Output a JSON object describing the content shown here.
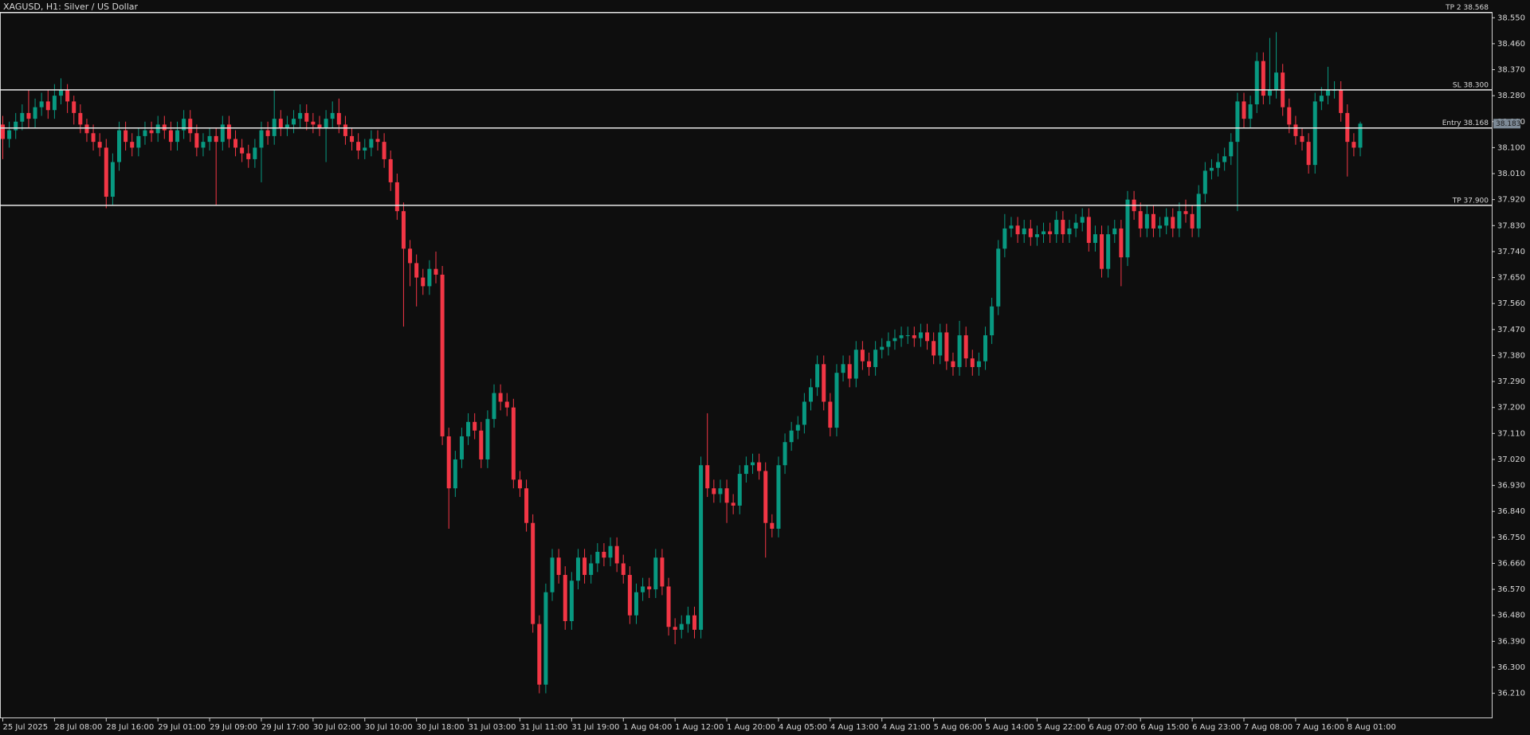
{
  "chart_data": {
    "type": "candlestick",
    "title": "XAGUSD, H1:  Silver / US Dollar",
    "bull_color": "#089981",
    "bear_color": "#f23645",
    "ylim": [
      36.14,
      38.57
    ],
    "yticks": [
      {
        "value": 38.55,
        "label": "38.550"
      },
      {
        "value": 38.46,
        "label": "38.460"
      },
      {
        "value": 38.37,
        "label": "38.370"
      },
      {
        "value": 38.28,
        "label": "38.280"
      },
      {
        "value": 38.19,
        "label": "38.190"
      },
      {
        "value": 38.1,
        "label": "38.100"
      },
      {
        "value": 38.01,
        "label": "38.010"
      },
      {
        "value": 37.92,
        "label": "37.920"
      },
      {
        "value": 37.83,
        "label": "37.830"
      },
      {
        "value": 37.74,
        "label": "37.740"
      },
      {
        "value": 37.65,
        "label": "37.650"
      },
      {
        "value": 37.56,
        "label": "37.560"
      },
      {
        "value": 37.47,
        "label": "37.470"
      },
      {
        "value": 37.38,
        "label": "37.380"
      },
      {
        "value": 37.29,
        "label": "37.290"
      },
      {
        "value": 37.2,
        "label": "37.200"
      },
      {
        "value": 37.11,
        "label": "37.110"
      },
      {
        "value": 37.02,
        "label": "37.020"
      },
      {
        "value": 36.93,
        "label": "36.930"
      },
      {
        "value": 36.84,
        "label": "36.840"
      },
      {
        "value": 36.75,
        "label": "36.750"
      },
      {
        "value": 36.66,
        "label": "36.660"
      },
      {
        "value": 36.57,
        "label": "36.570"
      },
      {
        "value": 36.48,
        "label": "36.480"
      },
      {
        "value": 36.39,
        "label": "36.390"
      },
      {
        "value": 36.3,
        "label": "36.300"
      },
      {
        "value": 36.21,
        "label": "36.210"
      }
    ],
    "levels": [
      {
        "label": "TP 2 38.568",
        "value": 38.568
      },
      {
        "label": "SL 38.300",
        "value": 38.3
      },
      {
        "label": "Entry 38.168",
        "value": 38.168
      },
      {
        "label": "TP 37.900",
        "value": 37.9
      }
    ],
    "last_price": {
      "value": 38.183,
      "label": "38.183"
    },
    "categories": [
      "25 Jul 2025",
      null,
      null,
      null,
      null,
      null,
      null,
      null,
      "28 Jul 08:00",
      null,
      null,
      null,
      null,
      null,
      null,
      null,
      "28 Jul 16:00",
      null,
      null,
      null,
      null,
      null,
      null,
      null,
      "29 Jul 01:00",
      null,
      null,
      null,
      null,
      null,
      null,
      null,
      "29 Jul 09:00",
      null,
      null,
      null,
      null,
      null,
      null,
      null,
      "29 Jul 17:00",
      null,
      null,
      null,
      null,
      null,
      null,
      null,
      "30 Jul 02:00",
      null,
      null,
      null,
      null,
      null,
      null,
      null,
      "30 Jul 10:00",
      null,
      null,
      null,
      null,
      null,
      null,
      null,
      "30 Jul 18:00",
      null,
      null,
      null,
      null,
      null,
      null,
      null,
      "31 Jul 03:00",
      null,
      null,
      null,
      null,
      null,
      null,
      null,
      "31 Jul 11:00",
      null,
      null,
      null,
      null,
      null,
      null,
      null,
      "31 Jul 19:00",
      null,
      null,
      null,
      null,
      null,
      null,
      null,
      "1 Aug 04:00",
      null,
      null,
      null,
      null,
      null,
      null,
      null,
      "1 Aug 12:00",
      null,
      null,
      null,
      null,
      null,
      null,
      null,
      "1 Aug 20:00",
      null,
      null,
      null,
      null,
      null,
      null,
      null,
      "4 Aug 05:00",
      null,
      null,
      null,
      null,
      null,
      null,
      null,
      "4 Aug 13:00",
      null,
      null,
      null,
      null,
      null,
      null,
      null,
      "4 Aug 21:00",
      null,
      null,
      null,
      null,
      null,
      null,
      null,
      "5 Aug 06:00",
      null,
      null,
      null,
      null,
      null,
      null,
      null,
      "5 Aug 14:00",
      null,
      null,
      null,
      null,
      null,
      null,
      null,
      "5 Aug 22:00",
      null,
      null,
      null,
      null,
      null,
      null,
      null,
      "6 Aug 07:00",
      null,
      null,
      null,
      null,
      null,
      null,
      null,
      "6 Aug 15:00",
      null,
      null,
      null,
      null,
      null,
      null,
      null,
      "6 Aug 23:00",
      null,
      null,
      null,
      null,
      null,
      null,
      null,
      "7 Aug 08:00",
      null,
      null,
      null,
      null,
      null,
      null,
      null,
      "7 Aug 16:00",
      null,
      null,
      null,
      null,
      null,
      null,
      null,
      "8 Aug 01:00",
      null,
      null
    ],
    "open": [
      38.18,
      38.13,
      38.16,
      38.19,
      38.22,
      38.2,
      38.24,
      38.26,
      38.23,
      38.28,
      38.3,
      38.26,
      38.22,
      38.18,
      38.15,
      38.12,
      38.1,
      37.93,
      38.05,
      38.16,
      38.12,
      38.1,
      38.14,
      38.16,
      38.15,
      38.18,
      38.16,
      38.12,
      38.16,
      38.2,
      38.15,
      38.1,
      38.12,
      38.14,
      38.12,
      38.18,
      38.13,
      38.1,
      38.08,
      38.06,
      38.1,
      38.16,
      38.14,
      38.2,
      38.17,
      38.18,
      38.2,
      38.22,
      38.19,
      38.18,
      38.17,
      38.2,
      38.22,
      38.18,
      38.14,
      38.12,
      38.09,
      38.1,
      38.13,
      38.12,
      38.06,
      37.98,
      37.88,
      37.75,
      37.7,
      37.65,
      37.62,
      37.68,
      37.66,
      37.1,
      36.92,
      37.02,
      37.1,
      37.15,
      37.12,
      37.02,
      37.16,
      37.25,
      37.22,
      37.2,
      36.95,
      36.92,
      36.8,
      36.45,
      36.24,
      36.56,
      36.68,
      36.62,
      36.46,
      36.6,
      36.68,
      36.62,
      36.66,
      36.7,
      36.68,
      36.72,
      36.66,
      36.62,
      36.48,
      36.56,
      36.58,
      36.57,
      36.68,
      36.58,
      36.44,
      36.43,
      36.45,
      36.48,
      36.43,
      37.0,
      36.92,
      36.9,
      36.92,
      36.87,
      36.86,
      36.97,
      37.0,
      37.01,
      36.98,
      36.8,
      36.78,
      37.0,
      37.08,
      37.12,
      37.14,
      37.22,
      37.27,
      37.35,
      37.22,
      37.13,
      37.32,
      37.35,
      37.3,
      37.4,
      37.36,
      37.34,
      37.4,
      37.41,
      37.43,
      37.44,
      37.45,
      37.45,
      37.44,
      37.46,
      37.43,
      37.38,
      37.46,
      37.36,
      37.34,
      37.45,
      37.37,
      37.34,
      37.36,
      37.45,
      37.55,
      37.75,
      37.82,
      37.83,
      37.8,
      37.82,
      37.79,
      37.8,
      37.81,
      37.8,
      37.85,
      37.8,
      37.82,
      37.84,
      37.86,
      37.77,
      37.8,
      37.68,
      37.8,
      37.82,
      37.72,
      37.92,
      37.88,
      37.82,
      37.87,
      37.82,
      37.83,
      37.86,
      37.82,
      37.88,
      37.87,
      37.82,
      37.94,
      38.02,
      38.03,
      38.05,
      38.07,
      38.12,
      38.26,
      38.2,
      38.25,
      38.4,
      38.28,
      38.3,
      38.36,
      38.24,
      38.18,
      38.14,
      38.12,
      38.04,
      38.26,
      38.28,
      38.3,
      38.3,
      38.22,
      38.12,
      38.1
    ],
    "high": [
      38.21,
      38.19,
      38.22,
      38.25,
      38.3,
      38.27,
      38.29,
      38.3,
      38.32,
      38.34,
      38.32,
      38.28,
      38.25,
      38.2,
      38.18,
      38.15,
      38.13,
      38.08,
      38.19,
      38.19,
      38.15,
      38.17,
      38.19,
      38.19,
      38.21,
      38.21,
      38.19,
      38.19,
      38.23,
      38.23,
      38.18,
      38.15,
      38.17,
      38.17,
      38.21,
      38.21,
      38.16,
      38.13,
      38.11,
      38.13,
      38.19,
      38.19,
      38.3,
      38.23,
      38.21,
      38.23,
      38.25,
      38.25,
      38.22,
      38.21,
      38.23,
      38.26,
      38.27,
      38.21,
      38.17,
      38.15,
      38.13,
      38.16,
      38.16,
      38.15,
      38.09,
      38.01,
      37.91,
      37.78,
      37.73,
      37.68,
      37.71,
      37.74,
      37.69,
      37.13,
      37.05,
      37.13,
      37.18,
      37.18,
      37.15,
      37.19,
      37.28,
      37.28,
      37.25,
      37.23,
      36.98,
      36.95,
      36.83,
      36.48,
      36.59,
      36.71,
      36.71,
      36.65,
      36.63,
      36.71,
      36.71,
      36.69,
      36.73,
      36.73,
      36.75,
      36.75,
      36.69,
      36.65,
      36.59,
      36.61,
      36.61,
      36.71,
      36.71,
      36.61,
      36.47,
      36.48,
      36.51,
      36.51,
      37.03,
      37.18,
      36.95,
      36.95,
      36.95,
      36.9,
      37.0,
      37.03,
      37.04,
      37.04,
      37.01,
      36.83,
      37.03,
      37.11,
      37.15,
      37.17,
      37.25,
      37.3,
      37.38,
      37.38,
      37.25,
      37.35,
      37.38,
      37.38,
      37.43,
      37.43,
      37.39,
      37.43,
      37.44,
      37.46,
      37.47,
      37.48,
      37.48,
      37.48,
      37.49,
      37.49,
      37.46,
      37.49,
      37.49,
      37.39,
      37.5,
      37.48,
      37.4,
      37.39,
      37.48,
      37.58,
      37.78,
      37.87,
      37.86,
      37.86,
      37.85,
      37.85,
      37.83,
      37.84,
      37.84,
      37.88,
      37.88,
      37.85,
      37.87,
      37.89,
      37.89,
      37.83,
      37.83,
      37.83,
      37.85,
      37.85,
      37.95,
      37.95,
      37.91,
      37.9,
      37.9,
      37.86,
      37.89,
      37.89,
      37.91,
      37.92,
      37.9,
      37.97,
      38.05,
      38.06,
      38.08,
      38.1,
      38.15,
      38.29,
      38.29,
      38.28,
      38.43,
      38.43,
      38.48,
      38.5,
      38.39,
      38.27,
      38.21,
      38.17,
      38.15,
      38.29,
      38.31,
      38.38,
      38.33,
      38.33,
      38.25,
      38.15,
      38.19
    ],
    "low": [
      38.06,
      38.1,
      38.13,
      38.16,
      38.17,
      38.17,
      38.21,
      38.2,
      38.2,
      38.25,
      38.22,
      38.18,
      38.15,
      38.12,
      38.09,
      38.07,
      37.89,
      37.9,
      38.02,
      38.09,
      38.07,
      38.07,
      38.11,
      38.12,
      38.12,
      38.13,
      38.09,
      38.09,
      38.13,
      38.12,
      38.07,
      38.07,
      38.09,
      37.9,
      38.09,
      38.1,
      38.07,
      38.05,
      38.03,
      38.03,
      37.98,
      38.11,
      38.11,
      38.14,
      38.14,
      38.15,
      38.17,
      38.16,
      38.15,
      38.14,
      38.05,
      38.17,
      38.15,
      38.11,
      38.09,
      38.06,
      38.06,
      38.07,
      38.09,
      38.03,
      37.95,
      37.85,
      37.48,
      37.62,
      37.55,
      37.59,
      37.59,
      37.63,
      37.07,
      36.78,
      36.89,
      36.99,
      37.07,
      37.09,
      36.99,
      36.99,
      37.13,
      37.19,
      37.17,
      36.92,
      36.89,
      36.77,
      36.42,
      36.21,
      36.21,
      36.53,
      36.59,
      36.43,
      36.43,
      36.57,
      36.59,
      36.59,
      36.63,
      36.65,
      36.65,
      36.63,
      36.59,
      36.45,
      36.45,
      36.53,
      36.54,
      36.54,
      36.55,
      36.41,
      36.38,
      36.4,
      36.42,
      36.4,
      36.4,
      36.89,
      36.87,
      36.87,
      36.8,
      36.83,
      36.83,
      36.94,
      36.97,
      36.95,
      36.68,
      36.75,
      36.75,
      36.97,
      37.05,
      37.09,
      37.11,
      37.19,
      37.24,
      37.19,
      37.1,
      37.1,
      37.29,
      37.27,
      37.27,
      37.33,
      37.31,
      37.31,
      37.37,
      37.38,
      37.4,
      37.41,
      37.42,
      37.41,
      37.41,
      37.4,
      37.35,
      37.35,
      37.33,
      37.31,
      37.31,
      37.34,
      37.31,
      37.31,
      37.33,
      37.42,
      37.52,
      37.72,
      37.79,
      37.77,
      37.77,
      37.76,
      37.76,
      37.77,
      37.77,
      37.77,
      37.77,
      37.77,
      37.79,
      37.81,
      37.74,
      37.74,
      37.65,
      37.65,
      37.77,
      37.62,
      37.69,
      37.85,
      37.79,
      37.79,
      37.79,
      37.79,
      37.8,
      37.79,
      37.79,
      37.84,
      37.79,
      37.79,
      37.91,
      37.99,
      38.0,
      38.02,
      38.04,
      37.88,
      38.17,
      38.17,
      38.22,
      38.25,
      38.25,
      38.27,
      38.21,
      38.15,
      38.11,
      38.09,
      38.01,
      38.01,
      38.23,
      38.25,
      38.27,
      38.19,
      38.0,
      38.07,
      38.07
    ],
    "close": [
      38.13,
      38.16,
      38.19,
      38.22,
      38.2,
      38.24,
      38.26,
      38.23,
      38.28,
      38.3,
      38.26,
      38.22,
      38.18,
      38.15,
      38.12,
      38.1,
      37.93,
      38.05,
      38.16,
      38.12,
      38.1,
      38.14,
      38.16,
      38.15,
      38.18,
      38.16,
      38.12,
      38.16,
      38.2,
      38.15,
      38.1,
      38.12,
      38.14,
      38.12,
      38.18,
      38.13,
      38.1,
      38.08,
      38.06,
      38.1,
      38.16,
      38.14,
      38.2,
      38.17,
      38.18,
      38.2,
      38.22,
      38.19,
      38.18,
      38.17,
      38.2,
      38.22,
      38.18,
      38.14,
      38.12,
      38.09,
      38.1,
      38.13,
      38.12,
      38.06,
      37.98,
      37.88,
      37.75,
      37.7,
      37.65,
      37.62,
      37.68,
      37.66,
      37.1,
      36.92,
      37.02,
      37.1,
      37.15,
      37.12,
      37.02,
      37.16,
      37.25,
      37.22,
      37.2,
      36.95,
      36.92,
      36.8,
      36.45,
      36.24,
      36.56,
      36.68,
      36.62,
      36.46,
      36.6,
      36.68,
      36.62,
      36.66,
      36.7,
      36.68,
      36.72,
      36.66,
      36.62,
      36.48,
      36.56,
      36.58,
      36.57,
      36.68,
      36.58,
      36.44,
      36.43,
      36.45,
      36.48,
      36.43,
      37.0,
      36.92,
      36.9,
      36.92,
      36.87,
      36.86,
      36.97,
      37.0,
      37.01,
      36.98,
      36.8,
      36.78,
      37.0,
      37.08,
      37.12,
      37.14,
      37.22,
      37.27,
      37.35,
      37.22,
      37.13,
      37.32,
      37.35,
      37.3,
      37.4,
      37.36,
      37.34,
      37.4,
      37.41,
      37.43,
      37.44,
      37.45,
      37.45,
      37.44,
      37.46,
      37.43,
      37.38,
      37.46,
      37.36,
      37.34,
      37.45,
      37.37,
      37.34,
      37.36,
      37.45,
      37.55,
      37.75,
      37.82,
      37.83,
      37.8,
      37.82,
      37.79,
      37.8,
      37.81,
      37.8,
      37.85,
      37.8,
      37.82,
      37.84,
      37.86,
      37.77,
      37.8,
      37.68,
      37.8,
      37.82,
      37.72,
      37.92,
      37.88,
      37.82,
      37.87,
      37.82,
      37.83,
      37.86,
      37.82,
      37.88,
      37.87,
      37.82,
      37.94,
      38.02,
      38.03,
      38.05,
      38.07,
      38.12,
      38.26,
      38.2,
      38.25,
      38.4,
      38.28,
      38.3,
      38.36,
      38.24,
      38.18,
      38.14,
      38.12,
      38.04,
      38.26,
      38.28,
      38.3,
      38.3,
      38.22,
      38.12,
      38.1,
      38.183
    ]
  }
}
